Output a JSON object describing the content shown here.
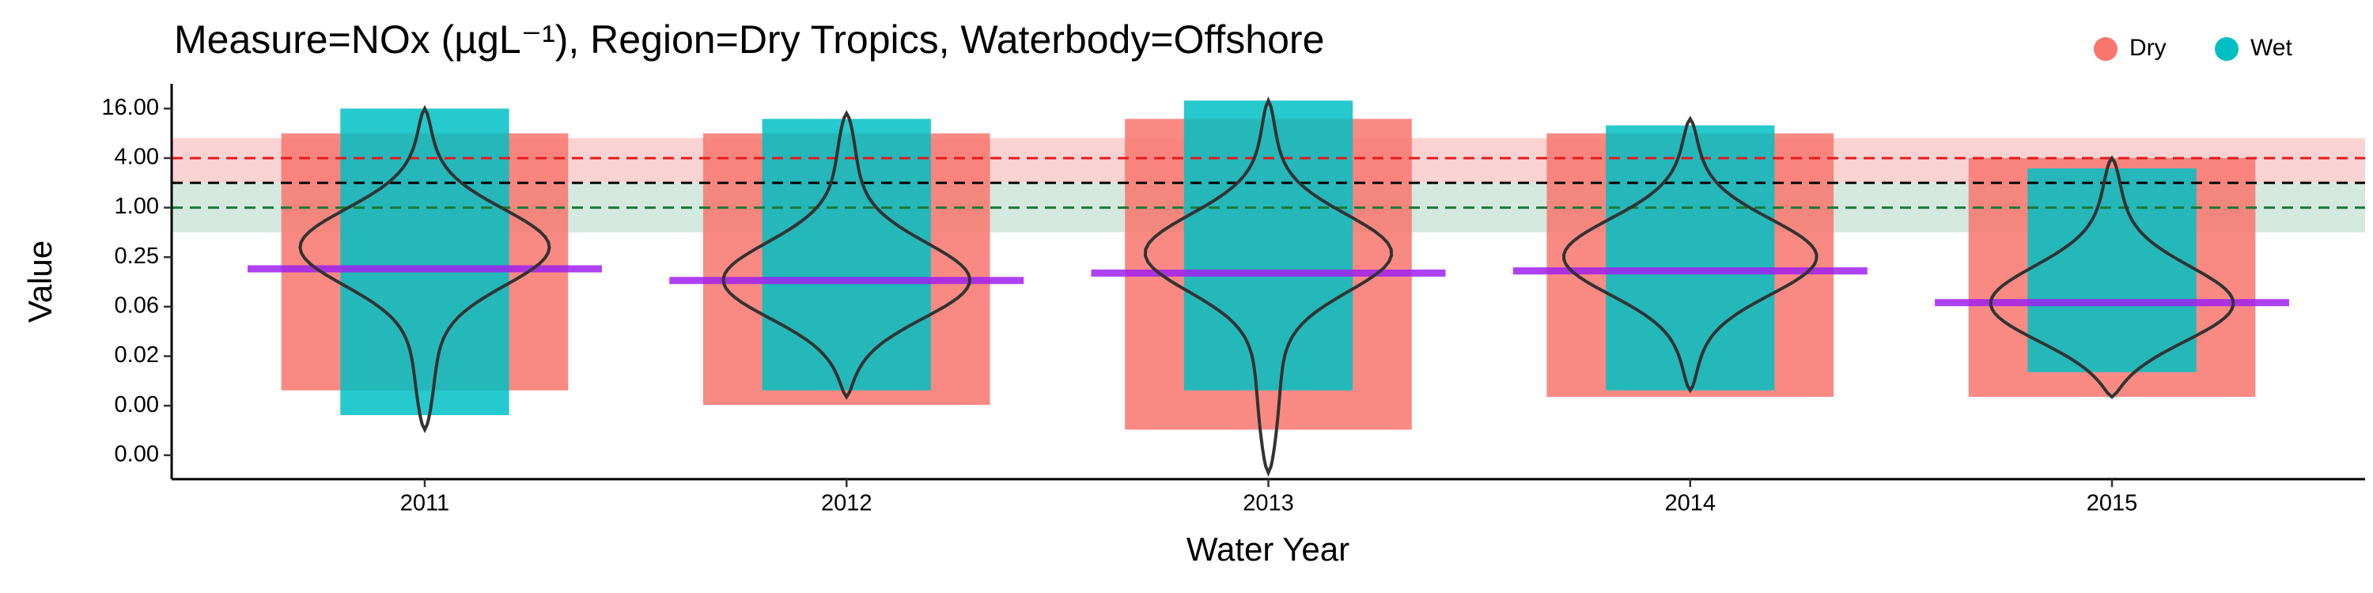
{
  "chart_data": {
    "type": "violin",
    "title": "Measure=NOx (µgL⁻¹), Region=Dry Tropics, Waterbody=Offshore",
    "x_label": "Water Year",
    "y_label": "Value",
    "categories": [
      "2011",
      "2012",
      "2013",
      "2014",
      "2015"
    ],
    "log_scale": true,
    "ylim": [
      0.0005,
      32
    ],
    "yticks": [
      {
        "value": 16,
        "label": "16.00"
      },
      {
        "value": 4,
        "label": "4.00"
      },
      {
        "value": 1,
        "label": "1.00"
      },
      {
        "value": 0.25,
        "label": "0.25"
      },
      {
        "value": 0.0625,
        "label": "0.06"
      },
      {
        "value": 0.015625,
        "label": "0.02"
      },
      {
        "value": 0.00390625,
        "label": "0.00"
      },
      {
        "value": 0.0009765625,
        "label": "0.00"
      }
    ],
    "series": [
      {
        "name": "Dry",
        "color": "#f8766d",
        "low": [
          0.006,
          0.004,
          0.002,
          0.005,
          0.005
        ],
        "high": [
          8,
          8,
          12,
          8,
          4
        ]
      },
      {
        "name": "Wet",
        "color": "#00bfc4",
        "low": [
          0.003,
          0.006,
          0.006,
          0.006,
          0.01
        ],
        "high": [
          16,
          12,
          20,
          10,
          3
        ]
      }
    ],
    "violin": {
      "low": [
        0.002,
        0.005,
        0.0006,
        0.006,
        0.005
      ],
      "high": [
        16,
        14,
        20,
        12,
        4
      ],
      "mode": [
        0.35,
        0.12,
        0.3,
        0.25,
        0.06
      ]
    },
    "medians": {
      "color": "#a020f0",
      "values": [
        0.18,
        0.13,
        0.16,
        0.17,
        0.07
      ]
    },
    "bands": [
      {
        "low": 2,
        "high": 7,
        "color": "#f9d3d3"
      },
      {
        "low": 0.5,
        "high": 2,
        "color": "#d3e8de"
      }
    ],
    "reference_lines": [
      {
        "value": 4,
        "color": "#e31a1c"
      },
      {
        "value": 2,
        "color": "#000000"
      },
      {
        "value": 1,
        "color": "#1b7837"
      }
    ],
    "legend_position": "top-right"
  }
}
